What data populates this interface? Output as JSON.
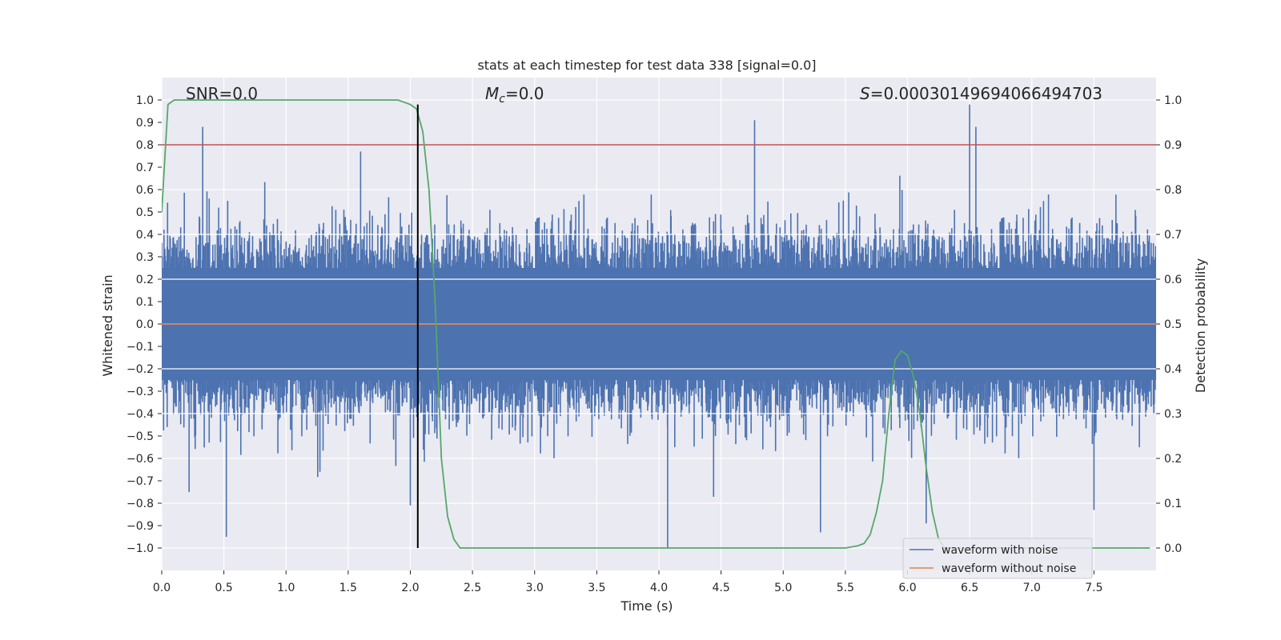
{
  "chart_data": {
    "type": "line",
    "title": "stats at each timestep for test data 338 [signal=0.0]",
    "xlabel": "Time (s)",
    "ylabel": "Whitened strain",
    "y2label": "Detection probability",
    "xlim": [
      0.0,
      8.0
    ],
    "ylim": [
      -1.1,
      1.1
    ],
    "y2lim": [
      -0.05,
      1.05
    ],
    "xticks": [
      0.0,
      0.5,
      1.0,
      1.5,
      2.0,
      2.5,
      3.0,
      3.5,
      4.0,
      4.5,
      5.0,
      5.5,
      6.0,
      6.5,
      7.0,
      7.5
    ],
    "xtick_labels": [
      "0.0",
      "0.5",
      "1.0",
      "1.5",
      "2.0",
      "2.5",
      "3.0",
      "3.5",
      "4.0",
      "4.5",
      "5.0",
      "5.5",
      "6.0",
      "6.5",
      "7.0",
      "7.5"
    ],
    "yticks": [
      1.0,
      0.9,
      0.8,
      0.7,
      0.6,
      0.5,
      0.4,
      0.3,
      0.2,
      0.1,
      0.0,
      -0.1,
      -0.2,
      -0.3,
      -0.4,
      -0.5,
      -0.6,
      -0.7,
      -0.8,
      -0.9,
      -1.0
    ],
    "ytick_labels": [
      "1.0",
      "0.9",
      "0.8",
      "0.7",
      "0.6",
      "0.5",
      "0.4",
      "0.3",
      "0.2",
      "0.1",
      "0.0",
      "−0.1",
      "−0.2",
      "−0.3",
      "−0.4",
      "−0.5",
      "−0.6",
      "−0.7",
      "−0.8",
      "−0.9",
      "−1.0"
    ],
    "y2ticks": [
      1.0,
      0.9,
      0.8,
      0.7,
      0.6,
      0.5,
      0.4,
      0.3,
      0.2,
      0.1,
      0.0
    ],
    "y2tick_labels": [
      "1.0",
      "0.9",
      "0.8",
      "0.7",
      "0.6",
      "0.5",
      "0.4",
      "0.3",
      "0.2",
      "0.1",
      "0.0"
    ],
    "annotations": {
      "snr": "SNR=0.0",
      "mc_symbol": "M",
      "mc_sub": "c",
      "mc_value": "=0.0",
      "s_symbol": "S",
      "s_value": "=0.00030149694066494703"
    },
    "legend": {
      "placement": "bottom-right",
      "entries": [
        "waveform with noise",
        "waveform without noise"
      ]
    },
    "colors": {
      "background": "#eaeaf2",
      "grid": "#ffffff",
      "noise": "#4c72b0",
      "clean": "#dd8452",
      "probability": "#55a868",
      "threshold": "#c44e52",
      "marker": "#000000"
    },
    "series": [
      {
        "name": "waveform with noise",
        "axis": "left",
        "style": "dense-noise",
        "amplitude_typical": 0.5,
        "peaks": [
          {
            "x": 0.33,
            "y": 0.88
          },
          {
            "x": 0.52,
            "y": -0.95
          },
          {
            "x": 1.6,
            "y": 0.77
          },
          {
            "x": 2.0,
            "y": -0.81
          },
          {
            "x": 4.07,
            "y": -1.0
          },
          {
            "x": 4.77,
            "y": 0.91
          },
          {
            "x": 5.3,
            "y": -0.93
          },
          {
            "x": 6.5,
            "y": 0.98
          },
          {
            "x": 6.55,
            "y": 0.88
          },
          {
            "x": 6.15,
            "y": -0.89
          },
          {
            "x": 7.5,
            "y": -0.83
          },
          {
            "x": 0.22,
            "y": -0.75
          }
        ]
      },
      {
        "name": "waveform without noise",
        "axis": "left",
        "x": [
          0.0,
          8.0
        ],
        "y": [
          0.0,
          0.0
        ]
      },
      {
        "name": "detection probability",
        "axis": "right",
        "x": [
          0.0,
          0.05,
          0.1,
          0.15,
          0.5,
          1.0,
          1.5,
          1.9,
          2.0,
          2.05,
          2.1,
          2.15,
          2.2,
          2.25,
          2.3,
          2.35,
          2.4,
          2.5,
          3.0,
          4.0,
          5.0,
          5.5,
          5.6,
          5.65,
          5.7,
          5.75,
          5.8,
          5.85,
          5.9,
          5.95,
          6.0,
          6.05,
          6.1,
          6.15,
          6.2,
          6.25,
          6.3,
          7.0,
          7.95
        ],
        "y": [
          0.75,
          0.99,
          1.0,
          1.0,
          1.0,
          1.0,
          1.0,
          1.0,
          0.99,
          0.98,
          0.93,
          0.8,
          0.55,
          0.2,
          0.07,
          0.02,
          0.0,
          0.0,
          0.0,
          0.0,
          0.0,
          0.0,
          0.005,
          0.01,
          0.03,
          0.08,
          0.15,
          0.3,
          0.42,
          0.44,
          0.43,
          0.38,
          0.3,
          0.18,
          0.08,
          0.02,
          0.0,
          0.0,
          0.0
        ]
      },
      {
        "name": "threshold",
        "axis": "right",
        "x": [
          0.0,
          8.0
        ],
        "y": [
          0.9,
          0.9
        ]
      },
      {
        "name": "current timestep",
        "axis": "left",
        "x": [
          2.06,
          2.06
        ],
        "y": [
          -1.0,
          0.98
        ]
      }
    ]
  }
}
